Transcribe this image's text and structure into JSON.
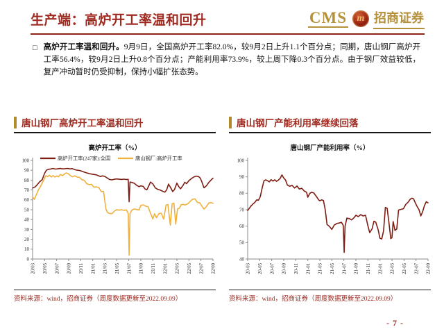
{
  "header": {
    "title": "生产端：高炉开工率温和回升",
    "logo": {
      "cms": "CMS",
      "badge": "m",
      "cn": "招商证券"
    }
  },
  "bullet": {
    "marker": "□",
    "lead": "高炉开工率温和回升。",
    "body": "9月9日，全国高炉开工率82.0%，较9月2日上升1.1个百分点；同期，唐山钢厂高炉开工率56.4%，较9月2日上升0.8个百分点；产能利用率73.9%，较上周下降0.3个百分点。由于钢厂效益较低，复产冲动暂时仍受抑制，保持小幅扩张态势。"
  },
  "colors": {
    "brand_red": "#9e2a20",
    "brand_gold": "#b5913c",
    "rule_red": "#8e2318",
    "line_red": "#7e1c13",
    "line_gold": "#f0b13c"
  },
  "page_number": "- 7 -",
  "chart_data": [
    {
      "type": "line",
      "panel_title": "唐山钢厂高炉开工率温和回升",
      "title": "高炉开工率（%）",
      "source": "资料来源：wind，招商证券（周度数据更新至2022.09.09）",
      "ylim": [
        0,
        100
      ],
      "y_ticks": [
        0,
        10,
        20,
        30,
        40,
        50,
        60,
        70,
        80,
        90,
        100
      ],
      "x_range": [
        0,
        30
      ],
      "x_tick_labels": [
        "20/03",
        "20/05",
        "20/07",
        "20/09",
        "20/11",
        "21/01",
        "21/03",
        "21/05",
        "21/07",
        "21/09",
        "21/11",
        "22/01",
        "22/03",
        "22/05",
        "22/07",
        "22/09"
      ],
      "grid": false,
      "legend_position": "top-inside",
      "series": [
        {
          "name": "高炉开工率(247家):全国",
          "color": "#7e1c13",
          "x": [
            0,
            0.4,
            0.8,
            1.2,
            1.6,
            2.0,
            2.3,
            2.6,
            3.0,
            3.4,
            3.8,
            4.2,
            4.6,
            5.0,
            5.4,
            5.8,
            6.2,
            6.6,
            7.0,
            7.4,
            7.8,
            8.2,
            8.6,
            9.0,
            9.4,
            9.8,
            10.2,
            10.6,
            11.0,
            11.3,
            11.6,
            12.0,
            12.4,
            12.8,
            13.2,
            13.6,
            14.0,
            14.4,
            14.8,
            15.2,
            15.6,
            15.9,
            16.05,
            16.2,
            16.5,
            16.9,
            17.3,
            17.7,
            18.0,
            18.4,
            18.7,
            19.0,
            19.3,
            19.6,
            20.0,
            20.4,
            20.8,
            21.2,
            21.6,
            22.0,
            22.3,
            22.6,
            23.0,
            23.3,
            23.6,
            24.0,
            24.3,
            24.6,
            25.0,
            25.3,
            25.6,
            26.0,
            26.4,
            26.8,
            27.2,
            27.6,
            27.9,
            28.2,
            28.5,
            28.9,
            29.3,
            29.7,
            30.0
          ],
          "values": [
            72,
            73,
            75.5,
            78.5,
            80.5,
            87,
            90,
            91,
            91.3,
            91.8,
            91.2,
            91.5,
            91.8,
            91.4,
            91.6,
            91.9,
            91.4,
            91.7,
            90.6,
            90.1,
            89.8,
            89,
            88.1,
            87.3,
            86.6,
            86.1,
            85.8,
            85.3,
            84.3,
            83.6,
            84.3,
            83.8,
            82.2,
            80.6,
            80.3,
            80.9,
            81.2,
            80.9,
            80.7,
            81,
            80.6,
            80.8,
            58,
            78.2,
            77.6,
            76.8,
            74.8,
            73.4,
            74.2,
            73.6,
            71,
            70.2,
            74,
            78,
            76.2,
            72.2,
            70.6,
            70,
            68.8,
            67.8,
            70.2,
            76,
            72,
            68.4,
            70.4,
            77,
            73.5,
            71.2,
            74.5,
            77.8,
            76.4,
            79.5,
            81.5,
            83.2,
            84.1,
            83.6,
            82,
            77.5,
            72.2,
            74.2,
            77.6,
            80.2,
            82
          ]
        },
        {
          "name": "唐山钢厂:高炉开工率",
          "color": "#f0b13c",
          "x": [
            0,
            0.3,
            0.6,
            1.0,
            1.4,
            1.8,
            2.2,
            2.5,
            2.8,
            3.1,
            3.4,
            3.7,
            4.0,
            4.3,
            4.6,
            5.0,
            5.3,
            5.6,
            6.0,
            6.3,
            6.6,
            7.0,
            7.4,
            7.8,
            8.2,
            8.6,
            9.0,
            9.4,
            9.8,
            10.2,
            10.6,
            11.0,
            11.4,
            11.8,
            12.2,
            12.5,
            12.8,
            13.2,
            13.6,
            14.0,
            14.4,
            14.8,
            15.2,
            15.6,
            15.9,
            16.05,
            16.2,
            16.5,
            16.9,
            17.3,
            17.7,
            18.0,
            18.4,
            18.8,
            19.2,
            19.6,
            20.0,
            20.3,
            20.6,
            21.0,
            21.4,
            21.8,
            22.2,
            22.5,
            22.9,
            23.2,
            23.5,
            23.8,
            24.1,
            24.4,
            24.7,
            25.0,
            25.4,
            25.8,
            26.2,
            26.6,
            27.0,
            27.4,
            27.8,
            28.2,
            28.5,
            28.9,
            29.3,
            29.7,
            30.0
          ],
          "values": [
            63,
            60.5,
            65,
            70.5,
            74.5,
            79.5,
            84.5,
            83.5,
            85,
            83.2,
            84.6,
            83.2,
            84.2,
            83.4,
            85.6,
            84.6,
            86.2,
            87.3,
            86.2,
            84.6,
            83.4,
            84.4,
            83.2,
            82.8,
            80.4,
            79.8,
            76.4,
            75.4,
            75.8,
            72.8,
            73.2,
            72.6,
            68.4,
            68.6,
            50.5,
            47,
            46.2,
            46,
            48.6,
            50,
            49.5,
            50,
            49.4,
            49.8,
            46.2,
            3.8,
            46.2,
            49.6,
            50.8,
            50.2,
            49.8,
            54.4,
            55,
            53.6,
            53,
            46.4,
            40.6,
            46,
            41.8,
            46,
            46.4,
            40.4,
            54.8,
            55.2,
            34.4,
            56,
            56.6,
            35.4,
            51,
            51.4,
            55,
            55.4,
            54.8,
            56,
            58.4,
            60.6,
            61,
            57.4,
            57,
            53.2,
            50.6,
            53,
            56.8,
            57.2,
            56.4
          ]
        }
      ]
    },
    {
      "type": "line",
      "panel_title": "唐山钢厂产能利用率继续回落",
      "title": "唐山钢厂产能利用率（%）",
      "source": "资料来源：wind，招商证券（周度数据更新至2022.09.09）",
      "ylim": [
        40,
        100
      ],
      "y_ticks": [
        40,
        50,
        60,
        70,
        80,
        90,
        100
      ],
      "x_range": [
        0,
        30
      ],
      "x_tick_labels": [
        "20-03",
        "20-05",
        "20-07",
        "20-09",
        "20-11",
        "21-01",
        "21-03",
        "21-05",
        "21-07",
        "21-09",
        "21-11",
        "22-01",
        "22-03",
        "22-05",
        "22-07",
        "22-09"
      ],
      "grid": false,
      "legend_position": "none",
      "series": [
        {
          "name": "唐山钢厂产能利用率",
          "color": "#7e1c13",
          "x": [
            0,
            0.3,
            0.6,
            0.9,
            1.2,
            1.5,
            1.8,
            2.1,
            2.4,
            2.7,
            3.0,
            3.3,
            3.6,
            3.9,
            4.2,
            4.5,
            4.8,
            5.1,
            5.4,
            5.7,
            6.0,
            6.3,
            6.6,
            7.0,
            7.4,
            7.8,
            8.2,
            8.6,
            9.0,
            9.4,
            9.8,
            10.0,
            10.3,
            10.6,
            11.0,
            11.4,
            11.8,
            12.0,
            12.3,
            12.6,
            12.9,
            13.2,
            13.6,
            14.0,
            14.4,
            14.8,
            15.2,
            15.6,
            15.9,
            16.05,
            16.2,
            16.5,
            16.9,
            17.3,
            17.7,
            18.0,
            18.4,
            18.8,
            19.2,
            19.6,
            20.0,
            20.3,
            20.7,
            21.0,
            21.3,
            21.7,
            22.0,
            22.3,
            22.6,
            22.9,
            23.2,
            23.5,
            23.8,
            24.0,
            24.2,
            24.5,
            24.8,
            25.1,
            25.5,
            25.9,
            26.3,
            26.7,
            27.0,
            27.3,
            27.6,
            27.9,
            28.2,
            28.5,
            28.8,
            29.1,
            29.4,
            29.7,
            30.0
          ],
          "values": [
            69.5,
            71,
            72.5,
            73.5,
            74.5,
            76,
            75.8,
            78,
            83,
            87.5,
            88.2,
            87.6,
            87,
            88.3,
            87.4,
            88.2,
            87.3,
            88,
            89,
            91.2,
            89.3,
            88.1,
            85,
            84.3,
            84.8,
            83.2,
            84.4,
            82.6,
            83,
            81.4,
            80.6,
            77.6,
            79.8,
            80.6,
            80.2,
            78.2,
            76,
            75.4,
            76,
            75.6,
            70,
            61,
            59.8,
            58,
            60.6,
            61.6,
            61.9,
            62.3,
            60.4,
            44,
            60,
            64.9,
            64.6,
            63.8,
            65.2,
            66.6,
            65.8,
            67,
            66.2,
            66.6,
            60.2,
            56,
            58.4,
            63,
            62.4,
            57.8,
            52.6,
            52.2,
            57.2,
            71.4,
            70.8,
            61.8,
            52.4,
            53,
            62.8,
            57.4,
            58.2,
            69.8,
            70.2,
            70.6,
            73.2,
            74.6,
            76.2,
            77,
            76.6,
            74,
            71.8,
            70,
            66.2,
            68.8,
            72.5,
            74.8,
            74.2
          ]
        }
      ]
    }
  ]
}
